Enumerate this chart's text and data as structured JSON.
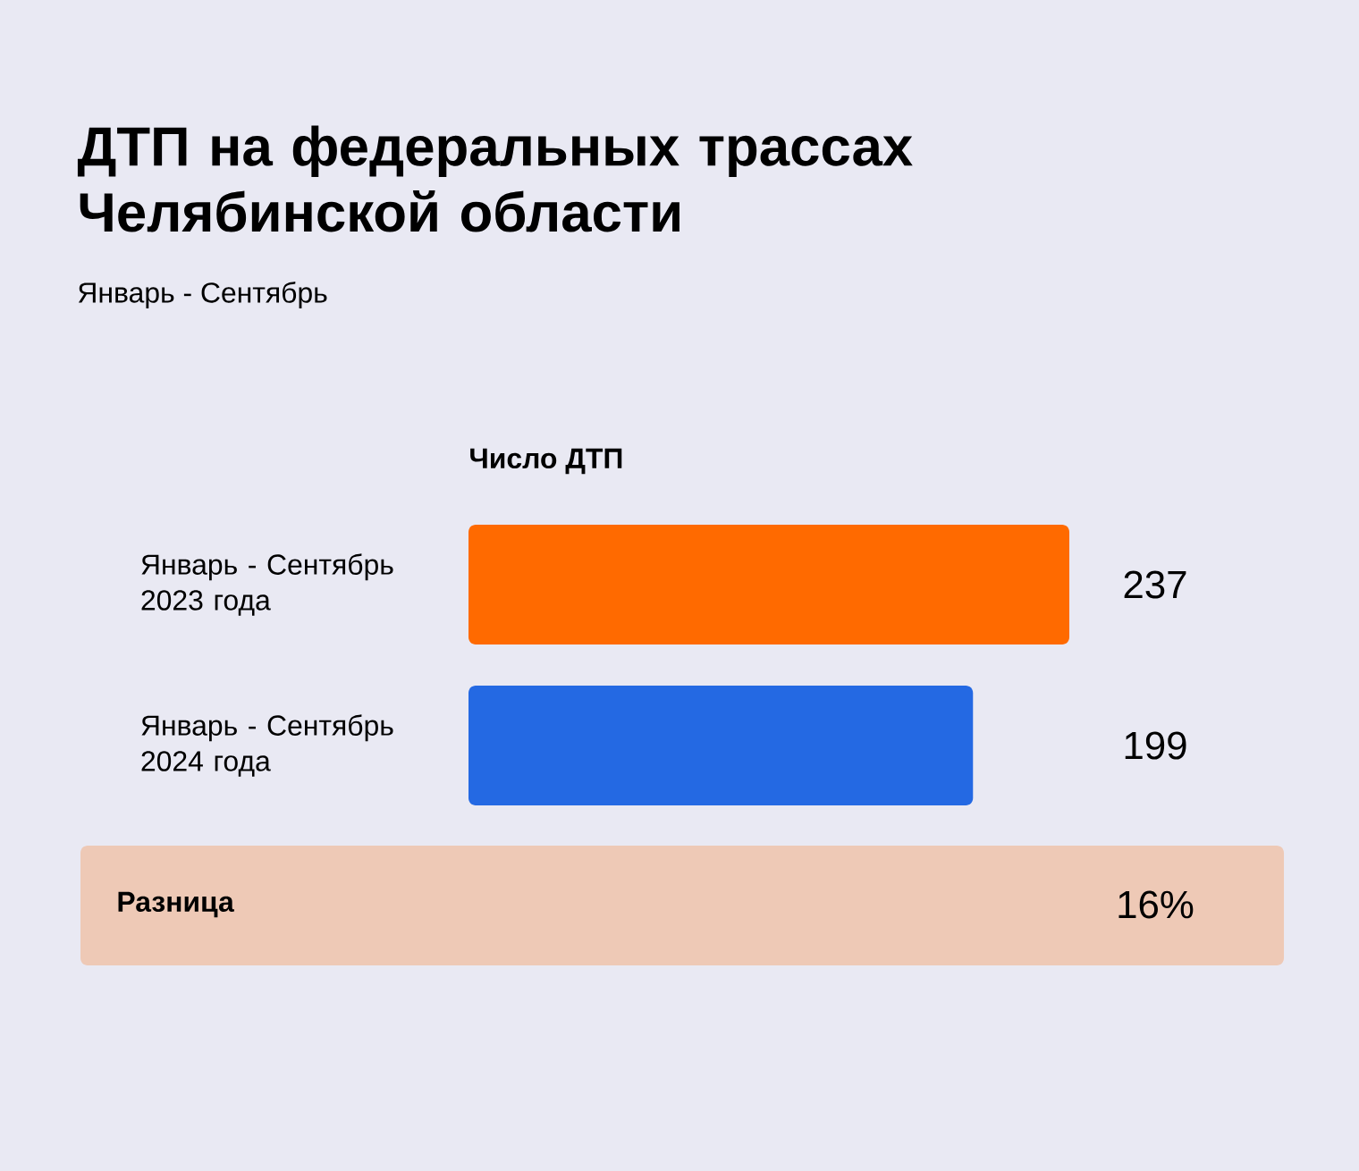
{
  "chart_data": {
    "type": "bar",
    "orientation": "horizontal",
    "title": "ДТП на федеральных трассах Челябинской области",
    "subtitle": "Январь - Сентябрь",
    "xlabel": "Число ДТП",
    "categories": [
      "Январь - Сентябрь 2023 года",
      "Январь - Сентябрь 2024 года"
    ],
    "values": [
      237,
      199
    ],
    "colors": [
      "#ff6a00",
      "#2469e3"
    ],
    "data_labels": true,
    "tick_labels": "y",
    "legend": false,
    "annotations": [
      "Разница",
      "16%"
    ]
  }
}
